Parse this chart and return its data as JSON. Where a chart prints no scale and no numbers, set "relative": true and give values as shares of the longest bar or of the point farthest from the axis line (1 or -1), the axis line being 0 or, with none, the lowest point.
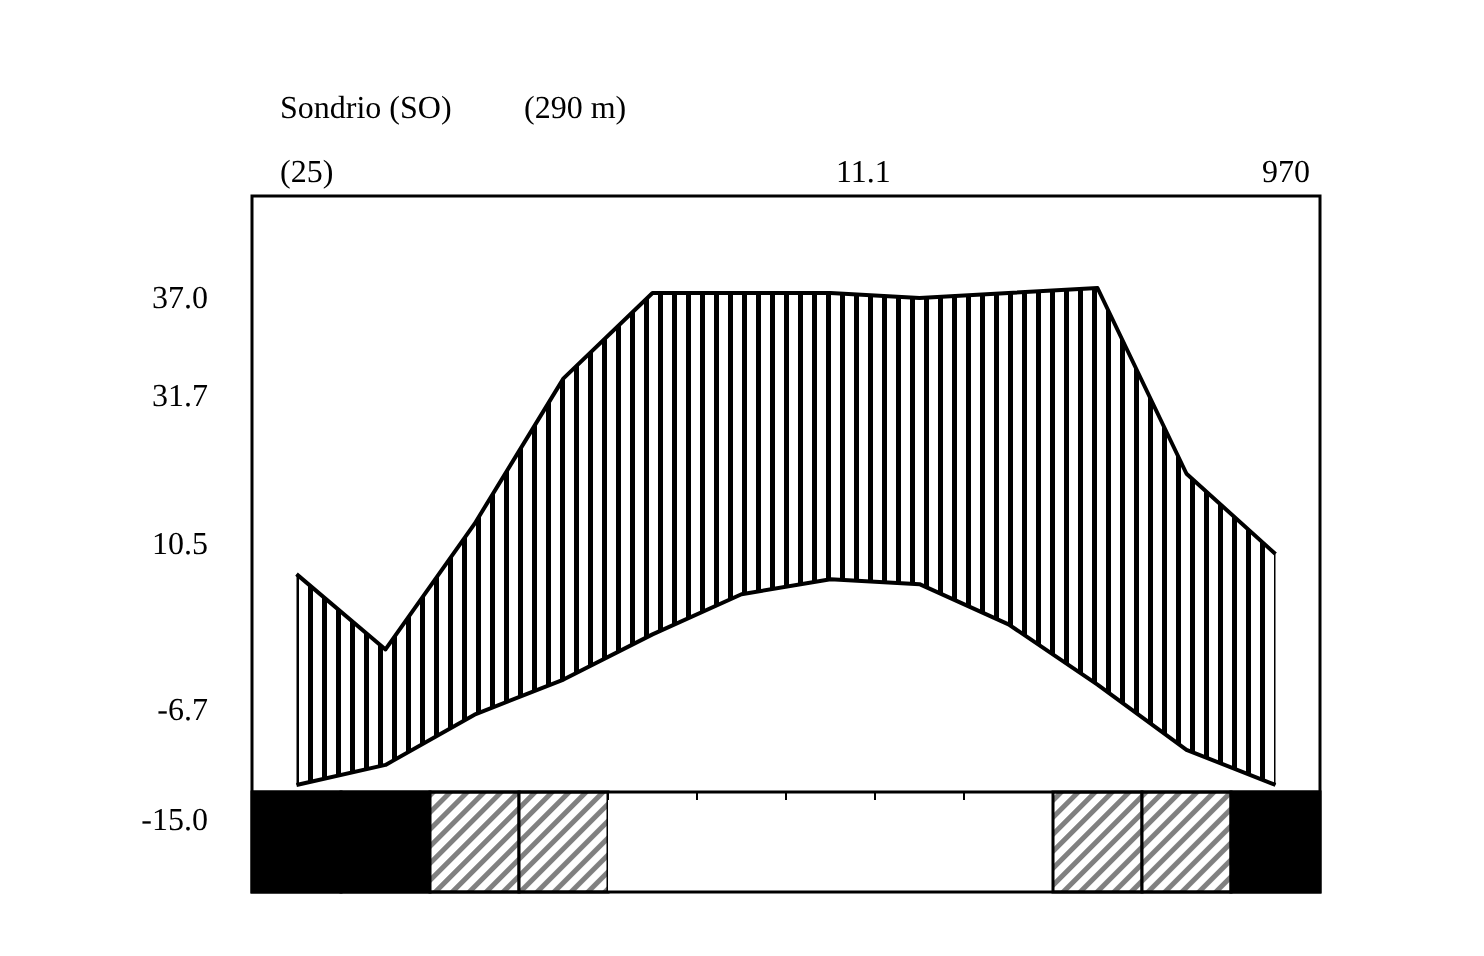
{
  "chart_data": {
    "type": "line",
    "title": "Sondrio (SO)",
    "subtitle": "(290 m)",
    "relative": true,
    "categories": [
      null,
      null,
      null,
      null,
      null,
      null,
      null,
      null,
      null,
      null,
      null,
      null
    ],
    "series": [
      {
        "color": "#000000",
        "values": [
          0.43,
          0.28,
          0.53,
          0.82,
          0.99,
          0.99,
          0.99,
          0.98,
          0.99,
          1.0,
          0.63,
          0.47
        ],
        "lower": [
          0.01,
          0.05,
          0.15,
          0.22,
          0.31,
          0.39,
          0.42,
          0.41,
          0.33,
          0.21,
          0.08,
          0.01
        ],
        "upper": [
          0.43,
          0.28,
          0.53,
          0.82,
          0.99,
          0.99,
          0.99,
          0.98,
          0.99,
          1.0,
          0.63,
          0.47
        ]
      },
      {
        "color": "#000000",
        "values": [
          0.01,
          0.05,
          0.15,
          0.22,
          0.31,
          0.39,
          0.42,
          0.41,
          0.33,
          0.21,
          0.08,
          0.01
        ]
      }
    ],
    "annotations": [
      "(25)",
      "11.1",
      "970",
      "37.0",
      "31.7",
      "10.5",
      "-6.7",
      "-15.0"
    ]
  }
}
